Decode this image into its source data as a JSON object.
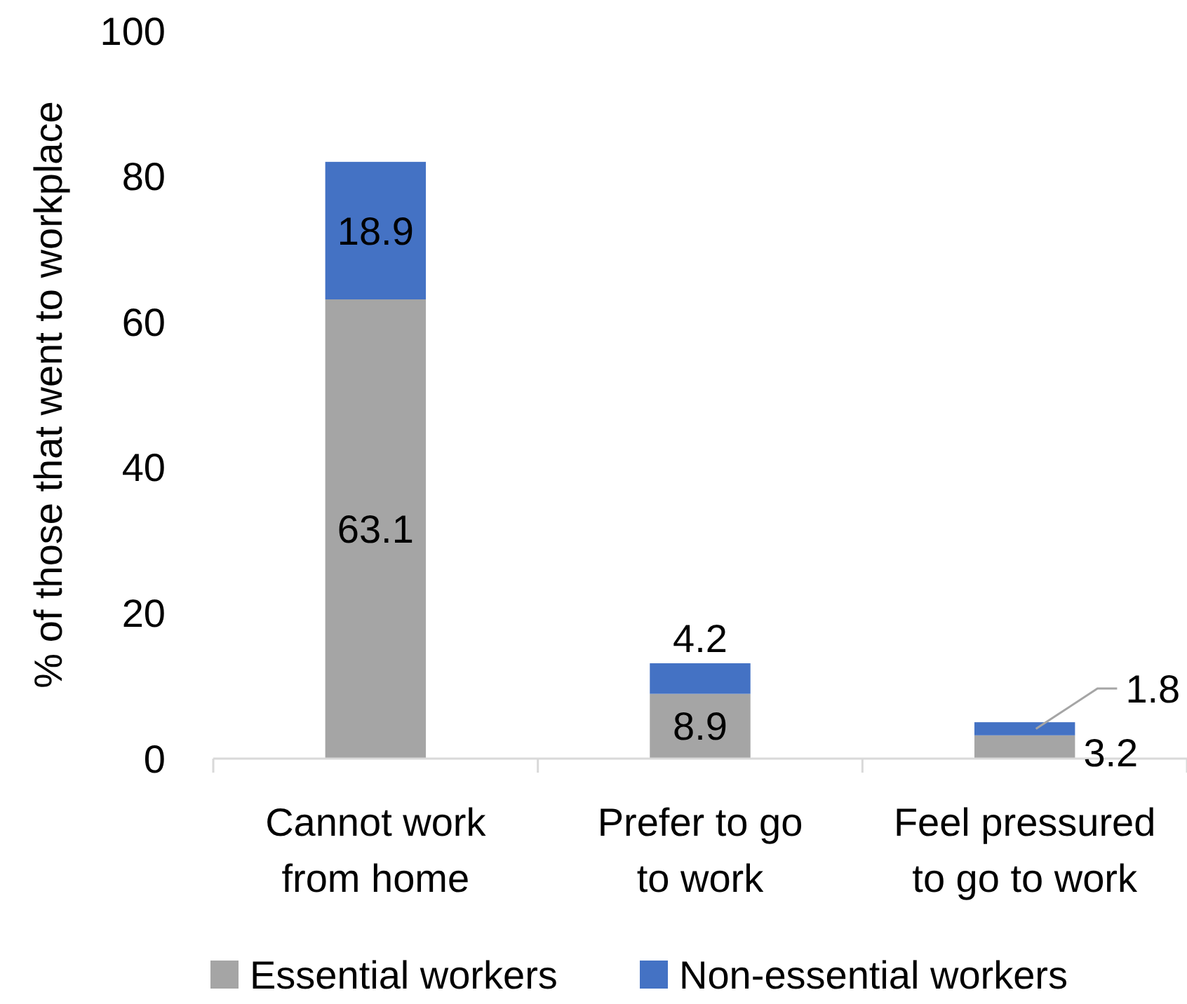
{
  "chart_data": {
    "type": "bar",
    "stacked": true,
    "ylabel": "% of those that went to workplace",
    "categories": [
      "Cannot work from home",
      "Prefer to go to work",
      "Feel pressured to go to work"
    ],
    "series": [
      {
        "name": "Essential workers",
        "color": "#a5a5a5",
        "values": [
          63.1,
          8.9,
          3.2
        ]
      },
      {
        "name": "Non-essential workers",
        "color": "#4472c4",
        "values": [
          18.9,
          4.2,
          1.8
        ]
      }
    ],
    "ylim": [
      0,
      100
    ],
    "yticks": [
      0,
      20,
      40,
      60,
      80,
      100
    ],
    "data_labels": true,
    "grid": false,
    "legend": "bottom"
  }
}
